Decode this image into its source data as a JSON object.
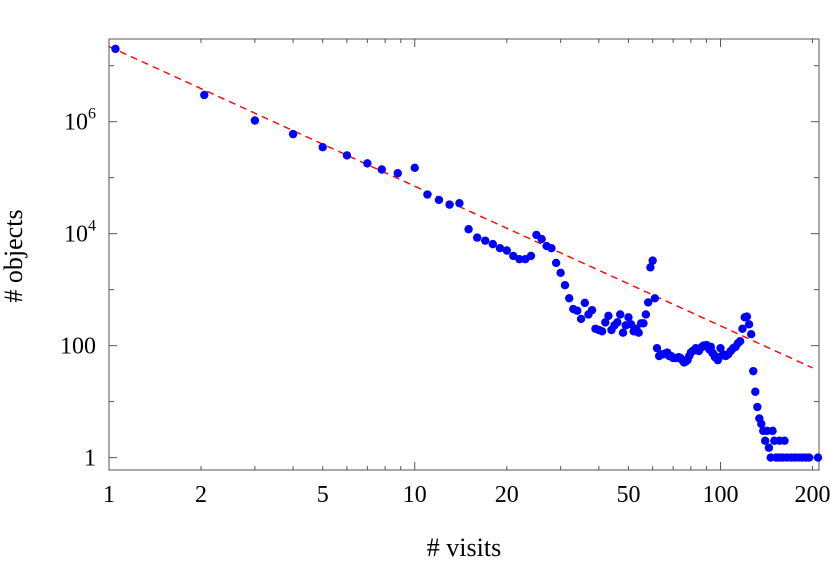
{
  "chart_data": {
    "type": "scatter",
    "title": "",
    "xlabel": "# visits",
    "ylabel": "# objects",
    "x_scale": "log",
    "y_scale": "log",
    "xlim": [
      1,
      210
    ],
    "ylim": [
      0.6,
      30000000
    ],
    "x_ticks": [
      {
        "value": 1,
        "label": "1"
      },
      {
        "value": 2,
        "label": "2"
      },
      {
        "value": 5,
        "label": "5"
      },
      {
        "value": 10,
        "label": "10"
      },
      {
        "value": 20,
        "label": "20"
      },
      {
        "value": 50,
        "label": "50"
      },
      {
        "value": 100,
        "label": "100"
      },
      {
        "value": 200,
        "label": "200"
      }
    ],
    "y_ticks": [
      {
        "value": 1,
        "base": "1",
        "exp": ""
      },
      {
        "value": 100,
        "base": "100",
        "exp": ""
      },
      {
        "value": 10000,
        "base": "10",
        "exp": "4"
      },
      {
        "value": 1000000,
        "base": "10",
        "exp": "6"
      }
    ],
    "grid": false,
    "marker_color": "#0000ff",
    "fit_line_color": "#ff0000",
    "fit_line": {
      "style": "dashed",
      "x": [
        1,
        200
      ],
      "y": [
        22000000,
        40
      ]
    },
    "series": [
      {
        "points": [
          [
            1.05,
            20000000
          ],
          [
            2.05,
            3000000
          ],
          [
            3,
            1050000
          ],
          [
            4,
            600000
          ],
          [
            5,
            350000
          ],
          [
            6,
            250000
          ],
          [
            7,
            180000
          ],
          [
            7.8,
            140000
          ],
          [
            8.8,
            120000
          ],
          [
            10,
            150000
          ],
          [
            11,
            50000
          ],
          [
            12,
            40000
          ],
          [
            13,
            33000
          ],
          [
            14,
            35000
          ],
          [
            15,
            12000
          ],
          [
            16,
            8500
          ],
          [
            17,
            7500
          ],
          [
            18,
            6500
          ],
          [
            19,
            5500
          ],
          [
            20,
            5000
          ],
          [
            21,
            4000
          ],
          [
            22,
            3500
          ],
          [
            23,
            3500
          ],
          [
            24,
            4000
          ],
          [
            25,
            9500
          ],
          [
            26,
            8000
          ],
          [
            27,
            6000
          ],
          [
            28,
            5500
          ],
          [
            29,
            3000
          ],
          [
            30,
            2000
          ],
          [
            31,
            1200
          ],
          [
            32,
            700
          ],
          [
            33,
            450
          ],
          [
            34,
            420
          ],
          [
            35,
            300
          ],
          [
            36,
            580
          ],
          [
            37,
            360
          ],
          [
            38,
            430
          ],
          [
            39,
            200
          ],
          [
            40,
            190
          ],
          [
            41,
            180
          ],
          [
            42,
            260
          ],
          [
            43,
            340
          ],
          [
            44,
            190
          ],
          [
            45,
            230
          ],
          [
            46,
            260
          ],
          [
            47,
            360
          ],
          [
            48,
            170
          ],
          [
            49,
            230
          ],
          [
            50,
            320
          ],
          [
            51,
            240
          ],
          [
            52,
            180
          ],
          [
            53,
            200
          ],
          [
            54,
            170
          ],
          [
            55,
            250
          ],
          [
            56,
            250
          ],
          [
            57,
            360
          ],
          [
            58,
            590
          ],
          [
            59,
            2500
          ],
          [
            60,
            3300
          ],
          [
            61,
            700
          ],
          [
            62,
            90
          ],
          [
            63,
            65
          ],
          [
            64,
            70
          ],
          [
            65,
            70
          ],
          [
            66,
            72
          ],
          [
            67,
            75
          ],
          [
            68,
            65
          ],
          [
            69,
            65
          ],
          [
            70,
            60
          ],
          [
            71,
            60
          ],
          [
            72,
            60
          ],
          [
            73,
            62
          ],
          [
            74,
            60
          ],
          [
            75,
            55
          ],
          [
            76,
            50
          ],
          [
            77,
            52
          ],
          [
            78,
            55
          ],
          [
            79,
            65
          ],
          [
            80,
            75
          ],
          [
            81,
            80
          ],
          [
            82,
            82
          ],
          [
            83,
            90
          ],
          [
            84,
            85
          ],
          [
            85,
            80
          ],
          [
            86,
            90
          ],
          [
            87,
            95
          ],
          [
            88,
            100
          ],
          [
            89,
            98
          ],
          [
            90,
            102
          ],
          [
            91,
            95
          ],
          [
            92,
            85
          ],
          [
            93,
            95
          ],
          [
            94,
            75
          ],
          [
            95,
            70
          ],
          [
            96,
            62
          ],
          [
            97,
            60
          ],
          [
            98,
            55
          ],
          [
            99,
            62
          ],
          [
            100,
            90
          ],
          [
            102,
            70
          ],
          [
            104,
            65
          ],
          [
            106,
            70
          ],
          [
            108,
            80
          ],
          [
            110,
            90
          ],
          [
            112,
            95
          ],
          [
            114,
            110
          ],
          [
            116,
            120
          ],
          [
            118,
            200
          ],
          [
            120,
            320
          ],
          [
            122,
            330
          ],
          [
            124,
            240
          ],
          [
            126,
            160
          ],
          [
            128,
            35
          ],
          [
            130,
            15
          ],
          [
            132,
            8
          ],
          [
            134,
            5
          ],
          [
            136,
            4
          ],
          [
            138,
            3
          ],
          [
            140,
            2
          ],
          [
            142,
            3
          ],
          [
            144,
            1.5
          ],
          [
            146,
            1
          ],
          [
            148,
            3
          ],
          [
            150,
            2
          ],
          [
            152,
            1
          ],
          [
            154,
            1
          ],
          [
            156,
            2
          ],
          [
            158,
            1
          ],
          [
            160,
            1
          ],
          [
            162,
            2
          ],
          [
            165,
            1
          ],
          [
            170,
            1
          ],
          [
            175,
            1
          ],
          [
            180,
            1
          ],
          [
            185,
            1
          ],
          [
            190,
            1
          ],
          [
            195,
            1
          ],
          [
            210,
            1
          ]
        ]
      }
    ]
  }
}
